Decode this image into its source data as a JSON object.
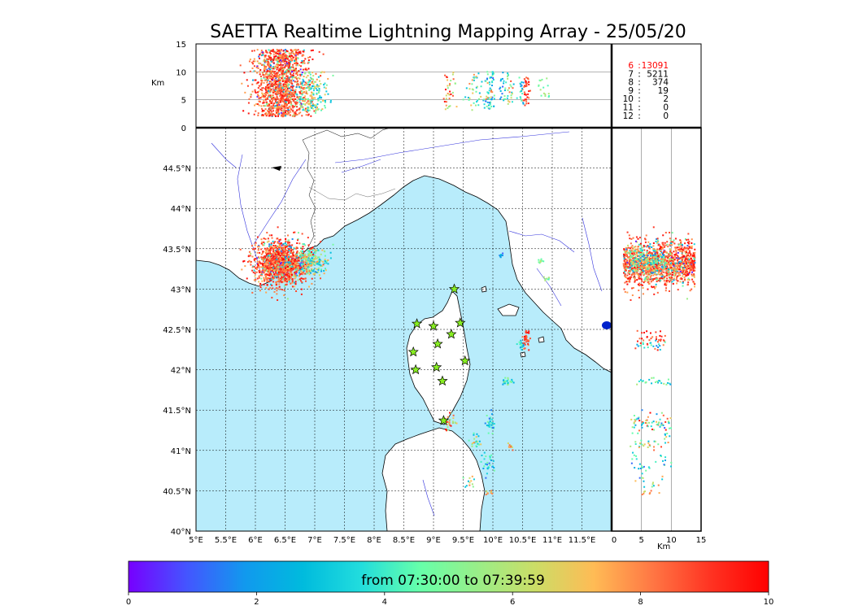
{
  "chart_data": {
    "type": "scatter",
    "title": "SAETTA Realtime Lightning Mapping Array - 25/05/20",
    "map": {
      "lon_range": [
        5,
        12
      ],
      "lat_range": [
        40,
        45
      ],
      "lon_ticks": [
        "5°E",
        "5.5°E",
        "6°E",
        "6.5°E",
        "7°E",
        "7.5°E",
        "8°E",
        "8.5°E",
        "9°E",
        "9.5°E",
        "10°E",
        "10.5°E",
        "11°E",
        "11.5°E"
      ],
      "lat_ticks": [
        "40°N",
        "40.5°N",
        "41°N",
        "41.5°N",
        "42°N",
        "42.5°N",
        "43°N",
        "43.5°N",
        "44°N",
        "44.5°N"
      ],
      "sea_color": "#b8ecfb",
      "land_color": "#ffffff",
      "grid": true
    },
    "altitude_top": {
      "ylabel": "Km",
      "y_range": [
        0,
        15
      ],
      "y_ticks": [
        "0",
        "5",
        "10",
        "15"
      ]
    },
    "altitude_side": {
      "xlabel": "Km",
      "x_range": [
        0,
        15
      ],
      "x_ticks": [
        "0",
        "5",
        "10",
        "15"
      ]
    },
    "station_counts": [
      {
        "stations": "6",
        "count": "13091",
        "color": "#ff0000"
      },
      {
        "stations": "7",
        "count": "5211",
        "color": "#000000"
      },
      {
        "stations": "8",
        "count": "374",
        "color": "#000000"
      },
      {
        "stations": "9",
        "count": "19",
        "color": "#000000"
      },
      {
        "stations": "10",
        "count": "2",
        "color": "#000000"
      },
      {
        "stations": "11",
        "count": "0",
        "color": "#000000"
      },
      {
        "stations": "12",
        "count": "0",
        "color": "#000000"
      }
    ],
    "stations": [
      {
        "lon": 9.35,
        "lat": 43.0
      },
      {
        "lon": 8.72,
        "lat": 42.57
      },
      {
        "lon": 9.0,
        "lat": 42.54
      },
      {
        "lon": 9.45,
        "lat": 42.58
      },
      {
        "lon": 9.3,
        "lat": 42.44
      },
      {
        "lon": 9.07,
        "lat": 42.32
      },
      {
        "lon": 8.66,
        "lat": 42.22
      },
      {
        "lon": 9.53,
        "lat": 42.11
      },
      {
        "lon": 9.05,
        "lat": 42.03
      },
      {
        "lon": 8.7,
        "lat": 42.0
      },
      {
        "lon": 9.15,
        "lat": 41.86
      },
      {
        "lon": 9.17,
        "lat": 41.37
      }
    ],
    "clusters": [
      {
        "lon": 6.45,
        "lat": 43.32,
        "slon": 0.22,
        "slat": 0.14,
        "zmin": 2,
        "zmax": 14,
        "n": 1300,
        "tmin": 0,
        "tmax": 10,
        "bias": 0.75
      },
      {
        "lon": 6.95,
        "lat": 43.35,
        "slon": 0.14,
        "slat": 0.08,
        "zmin": 3,
        "zmax": 10,
        "n": 180,
        "tmin": 2,
        "tmax": 8,
        "bias": 0
      },
      {
        "lon": 10.55,
        "lat": 42.4,
        "slon": 0.04,
        "slat": 0.06,
        "zmin": 4,
        "zmax": 9,
        "n": 35,
        "tmin": 8,
        "tmax": 10,
        "bias": 0
      },
      {
        "lon": 10.48,
        "lat": 42.3,
        "slon": 0.03,
        "slat": 0.03,
        "zmin": 4,
        "zmax": 9,
        "n": 18,
        "tmin": 1,
        "tmax": 5,
        "bias": 0
      },
      {
        "lon": 10.25,
        "lat": 41.85,
        "slon": 0.05,
        "slat": 0.02,
        "zmin": 4,
        "zmax": 10,
        "n": 25,
        "tmin": 2,
        "tmax": 6,
        "bias": 0
      },
      {
        "lon": 9.27,
        "lat": 41.35,
        "slon": 0.06,
        "slat": 0.05,
        "zmin": 3,
        "zmax": 10,
        "n": 35,
        "tmin": 5,
        "tmax": 10,
        "bias": 0
      },
      {
        "lon": 9.95,
        "lat": 41.35,
        "slon": 0.04,
        "slat": 0.06,
        "zmin": 3,
        "zmax": 10,
        "n": 30,
        "tmin": 1,
        "tmax": 5,
        "bias": 0
      },
      {
        "lon": 9.7,
        "lat": 41.12,
        "slon": 0.05,
        "slat": 0.06,
        "zmin": 3,
        "zmax": 10,
        "n": 22,
        "tmin": 2,
        "tmax": 8,
        "bias": 0
      },
      {
        "lon": 9.9,
        "lat": 40.82,
        "slon": 0.06,
        "slat": 0.08,
        "zmin": 3,
        "zmax": 10,
        "n": 28,
        "tmin": 1,
        "tmax": 6,
        "bias": 0
      },
      {
        "lon": 10.3,
        "lat": 41.05,
        "slon": 0.03,
        "slat": 0.03,
        "zmin": 4,
        "zmax": 9,
        "n": 8,
        "tmin": 6,
        "tmax": 9,
        "bias": 0
      },
      {
        "lon": 10.15,
        "lat": 43.42,
        "slon": 0.03,
        "slat": 0.02,
        "zmin": 5,
        "zmax": 9,
        "n": 10,
        "tmin": 1,
        "tmax": 3,
        "bias": 0
      },
      {
        "lon": 10.8,
        "lat": 43.35,
        "slon": 0.03,
        "slat": 0.02,
        "zmin": 5,
        "zmax": 9,
        "n": 8,
        "tmin": 4,
        "tmax": 6,
        "bias": 0
      },
      {
        "lon": 10.9,
        "lat": 43.12,
        "slon": 0.03,
        "slat": 0.02,
        "zmin": 5,
        "zmax": 9,
        "n": 8,
        "tmin": 3,
        "tmax": 6,
        "bias": 0
      },
      {
        "lon": 9.95,
        "lat": 40.47,
        "slon": 0.03,
        "slat": 0.02,
        "zmin": 5,
        "zmax": 9,
        "n": 8,
        "tmin": 6,
        "tmax": 9,
        "bias": 0
      },
      {
        "lon": 9.6,
        "lat": 40.6,
        "slon": 0.05,
        "slat": 0.08,
        "zmin": 4,
        "zmax": 10,
        "n": 12,
        "tmin": 2,
        "tmax": 8,
        "bias": 0
      }
    ],
    "colorbar": {
      "label": "from 07:30:00 to 07:39:59",
      "range": [
        0,
        10
      ],
      "ticks": [
        "0",
        "2",
        "4",
        "6",
        "8",
        "10"
      ],
      "colors": [
        "#7700ff",
        "#4455ff",
        "#1199ee",
        "#00bbdd",
        "#22dddd",
        "#66ffaa",
        "#99ee88",
        "#ccdd66",
        "#ffbb55",
        "#ff7744",
        "#ff3322",
        "#ff0000"
      ]
    }
  }
}
